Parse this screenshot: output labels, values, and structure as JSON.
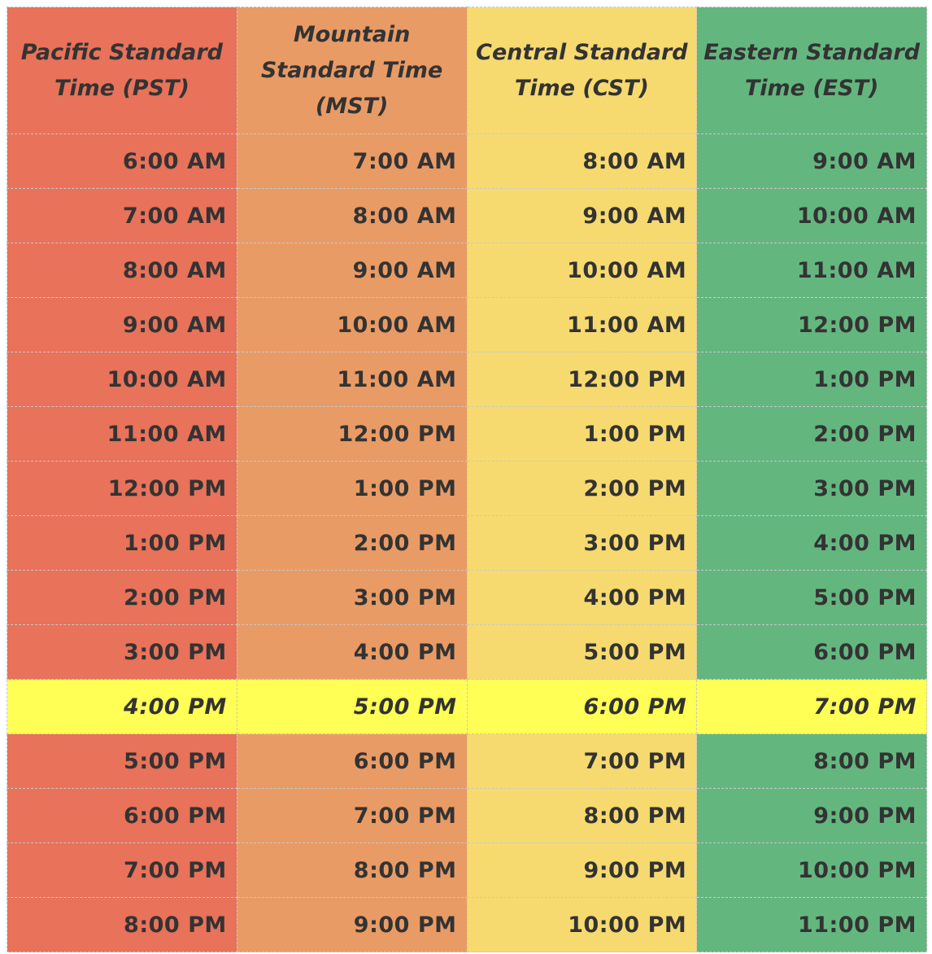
{
  "table": {
    "header": [
      "Pacific Standard Time (PST)",
      "Mountain Standard Time (MST)",
      "Central Standard Time (CST)",
      "Eastern Standard Time (EST)"
    ],
    "rows": [
      [
        "6:00 AM",
        "7:00 AM",
        "8:00 AM",
        "9:00 AM"
      ],
      [
        "7:00 AM",
        "8:00 AM",
        "9:00 AM",
        "10:00 AM"
      ],
      [
        "8:00 AM",
        "9:00 AM",
        "10:00 AM",
        "11:00 AM"
      ],
      [
        "9:00 AM",
        "10:00 AM",
        "11:00 AM",
        "12:00 PM"
      ],
      [
        "10:00 AM",
        "11:00 AM",
        "12:00 PM",
        "1:00 PM"
      ],
      [
        "11:00 AM",
        "12:00 PM",
        "1:00 PM",
        "2:00 PM"
      ],
      [
        "12:00 PM",
        "1:00 PM",
        "2:00 PM",
        "3:00 PM"
      ],
      [
        "1:00 PM",
        "2:00 PM",
        "3:00 PM",
        "4:00 PM"
      ],
      [
        "2:00 PM",
        "3:00 PM",
        "4:00 PM",
        "5:00 PM"
      ],
      [
        "3:00 PM",
        "4:00 PM",
        "5:00 PM",
        "6:00 PM"
      ],
      [
        "4:00 PM",
        "5:00 PM",
        "6:00 PM",
        "7:00 PM"
      ],
      [
        "5:00 PM",
        "6:00 PM",
        "7:00 PM",
        "8:00 PM"
      ],
      [
        "6:00 PM",
        "7:00 PM",
        "8:00 PM",
        "9:00 PM"
      ],
      [
        "7:00 PM",
        "8:00 PM",
        "9:00 PM",
        "10:00 PM"
      ],
      [
        "8:00 PM",
        "9:00 PM",
        "10:00 PM",
        "11:00 PM"
      ]
    ]
  }
}
